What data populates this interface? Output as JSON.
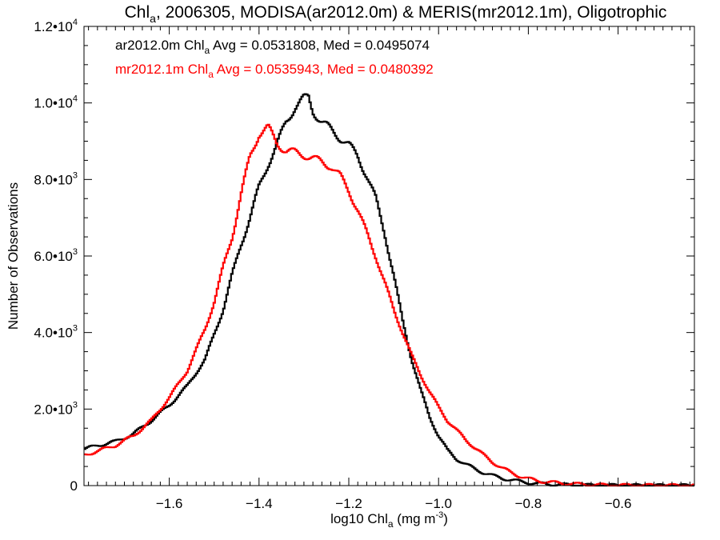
{
  "chart_data": {
    "type": "line",
    "title": {
      "prefix": "Chl",
      "sub": "a",
      "suffix": ", 2006305, MODISA(ar2012.0m) & MERIS(mr2012.1m), Oligotrophic"
    },
    "xlabel": {
      "prefix": "log10 Chl",
      "sub": "a",
      "mid": " (mg m",
      "sup": "-3",
      "suffix": ")"
    },
    "ylabel": "Number of Observations",
    "xlim": [
      -1.79,
      -0.43
    ],
    "ylim": [
      0,
      12000
    ],
    "xticks": [
      {
        "value": -1.6,
        "label": "−1.6"
      },
      {
        "value": -1.4,
        "label": "−1.4"
      },
      {
        "value": -1.2,
        "label": "−1.2"
      },
      {
        "value": -1.0,
        "label": "−1.0"
      },
      {
        "value": -0.8,
        "label": "−0.8"
      },
      {
        "value": -0.6,
        "label": "−0.6"
      }
    ],
    "yticks": [
      {
        "value": 0,
        "base": "0",
        "exp": ""
      },
      {
        "value": 2000,
        "base": "2.0•10",
        "exp": "3"
      },
      {
        "value": 4000,
        "base": "4.0•10",
        "exp": "3"
      },
      {
        "value": 6000,
        "base": "6.0•10",
        "exp": "3"
      },
      {
        "value": 8000,
        "base": "8.0•10",
        "exp": "3"
      },
      {
        "value": 10000,
        "base": "1.0•10",
        "exp": "4"
      },
      {
        "value": 12000,
        "base": "1.2•10",
        "exp": "4"
      }
    ],
    "grid": false,
    "legend_position": "top-left",
    "series": [
      {
        "name": "ar2012.0m",
        "color": "#000000",
        "label": {
          "prefix": "ar2012.0m Chl",
          "sub": "a",
          "suffix": " Avg = 0.0531808, Med = 0.0495074"
        },
        "x": [
          -1.79,
          -1.76,
          -1.72,
          -1.68,
          -1.64,
          -1.6,
          -1.56,
          -1.52,
          -1.48,
          -1.46,
          -1.44,
          -1.42,
          -1.4,
          -1.38,
          -1.36,
          -1.34,
          -1.32,
          -1.3,
          -1.29,
          -1.28,
          -1.26,
          -1.24,
          -1.22,
          -1.2,
          -1.18,
          -1.16,
          -1.14,
          -1.12,
          -1.1,
          -1.08,
          -1.06,
          -1.04,
          -1.02,
          -1.0,
          -0.98,
          -0.96,
          -0.94,
          -0.92,
          -0.9,
          -0.88,
          -0.86,
          -0.84,
          -0.82,
          -0.8,
          -0.78,
          -0.76,
          -0.72,
          -0.68,
          -0.64,
          -0.6,
          -0.5,
          -0.43
        ],
        "y": [
          950,
          1050,
          1150,
          1350,
          1700,
          2100,
          2600,
          3300,
          4600,
          5500,
          6300,
          7000,
          7800,
          8400,
          8900,
          9500,
          9900,
          10100,
          10150,
          9800,
          9500,
          9300,
          9100,
          8900,
          8600,
          8100,
          7500,
          6600,
          5500,
          4300,
          3300,
          2500,
          1800,
          1300,
          920,
          700,
          560,
          440,
          340,
          260,
          200,
          150,
          110,
          80,
          55,
          40,
          20,
          10,
          5,
          3,
          0,
          0
        ]
      },
      {
        "name": "mr2012.1m",
        "color": "#ff0000",
        "label": {
          "prefix": "mr2012.1m Chl",
          "sub": "a",
          "suffix": " Avg = 0.0535943, Med = 0.0480392"
        },
        "x": [
          -1.79,
          -1.76,
          -1.72,
          -1.68,
          -1.64,
          -1.6,
          -1.56,
          -1.52,
          -1.5,
          -1.48,
          -1.46,
          -1.44,
          -1.42,
          -1.4,
          -1.38,
          -1.36,
          -1.34,
          -1.32,
          -1.3,
          -1.28,
          -1.26,
          -1.24,
          -1.22,
          -1.2,
          -1.18,
          -1.16,
          -1.14,
          -1.12,
          -1.1,
          -1.08,
          -1.06,
          -1.04,
          -1.02,
          -1.0,
          -0.98,
          -0.96,
          -0.94,
          -0.92,
          -0.9,
          -0.88,
          -0.86,
          -0.84,
          -0.82,
          -0.8,
          -0.78,
          -0.76,
          -0.72,
          -0.68,
          -0.64,
          -0.6,
          -0.5,
          -0.43
        ],
        "y": [
          800,
          900,
          1050,
          1300,
          1700,
          2300,
          3000,
          4100,
          4800,
          5700,
          6500,
          7600,
          8600,
          9200,
          9350,
          8950,
          8750,
          8700,
          8650,
          8550,
          8450,
          8350,
          8100,
          7700,
          7200,
          6600,
          6000,
          5300,
          4600,
          4000,
          3400,
          2900,
          2450,
          2050,
          1700,
          1450,
          1200,
          1000,
          800,
          620,
          470,
          350,
          250,
          180,
          130,
          95,
          60,
          30,
          15,
          8,
          2,
          0
        ]
      }
    ]
  }
}
